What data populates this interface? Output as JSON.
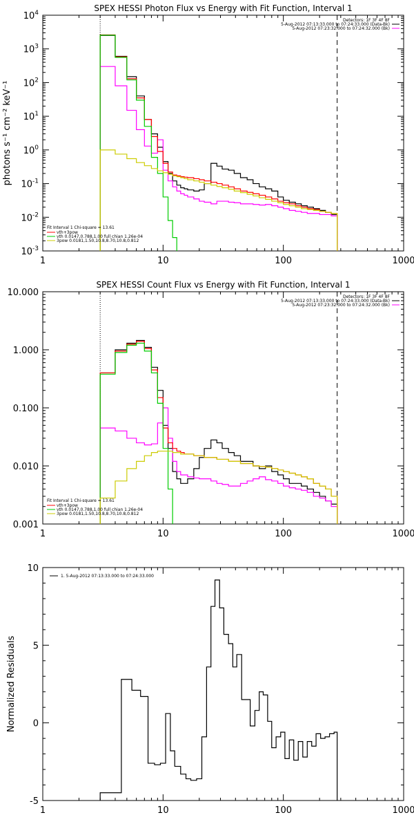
{
  "chart_data": [
    {
      "type": "line",
      "title": "SPEX HESSI Photon Flux vs Energy with Fit Function, Interval 1",
      "ylabel": "photons s⁻¹ cm⁻² keV⁻¹",
      "xlabel": "",
      "xscale": "log",
      "yscale": "log",
      "xlim": [
        1,
        1000
      ],
      "ylim": [
        0.001,
        10000
      ],
      "x_ticks": [
        1,
        10,
        100,
        1000
      ],
      "x_tick_labels": [
        "1",
        "10",
        "100",
        "1000"
      ],
      "y_ticks": [
        0.001,
        0.01,
        0.1,
        1,
        10,
        100,
        1000,
        10000
      ],
      "y_tick_labels": [
        {
          "base": "10",
          "exp": "-3"
        },
        {
          "base": "10",
          "exp": "-2"
        },
        {
          "base": "10",
          "exp": "-1"
        },
        {
          "base": "10",
          "exp": "0"
        },
        {
          "base": "10",
          "exp": "1"
        },
        {
          "base": "10",
          "exp": "2"
        },
        {
          "base": "10",
          "exp": "3"
        },
        {
          "base": "10",
          "exp": "4"
        }
      ],
      "vlines": [
        {
          "x": 3,
          "style": "dotted",
          "color": "#000000"
        },
        {
          "x": 280,
          "style": "dashed",
          "color": "#000000"
        }
      ],
      "header_lines": [
        "Detectors: 1F 3F 4F 8F",
        "5-Aug-2012 07:13:33.000 to 07:24:33.000 (Data-Bk)",
        "5-Aug-2012 07:23:32.000 to 07:24:32.000 (Bk)"
      ],
      "legend": {
        "position": "bottom-left",
        "header": "Fit Interval 1    Chi-square = 13.61",
        "entries": [
          {
            "label": "vth+3pow",
            "color": "#ff0000"
          },
          {
            "label": "vth 0.0147,0.788,1.00  full chian 1.26e-04",
            "color": "#00cc00"
          },
          {
            "label": "3pow 0.0181,1.50,10.8,8.70,10.8,0.812",
            "color": "#cccc00"
          }
        ]
      },
      "series": [
        {
          "name": "Data-Bk",
          "color": "#000000",
          "style": "step",
          "x": [
            3,
            4,
            5,
            6,
            7,
            8,
            9,
            10,
            11,
            12,
            13,
            14,
            15,
            16,
            18,
            20,
            22,
            25,
            28,
            31,
            35,
            39,
            44,
            50,
            56,
            63,
            71,
            80,
            90,
            100,
            112,
            126,
            141,
            158,
            178,
            200,
            224,
            250,
            280
          ],
          "y": [
            2500,
            600,
            150,
            40,
            8,
            3,
            1.2,
            0.45,
            0.2,
            0.12,
            0.09,
            0.075,
            0.07,
            0.065,
            0.06,
            0.065,
            0.1,
            0.4,
            0.33,
            0.27,
            0.25,
            0.2,
            0.15,
            0.13,
            0.1,
            0.08,
            0.07,
            0.06,
            0.04,
            0.032,
            0.028,
            0.025,
            0.022,
            0.02,
            0.018,
            0.016,
            0.014,
            0.012,
            0.012
          ]
        },
        {
          "name": "Bk",
          "color": "#ff00ff",
          "style": "step",
          "x": [
            3,
            4,
            5,
            6,
            7,
            8,
            9,
            10,
            11,
            12,
            13,
            14,
            15,
            16,
            18,
            20,
            22,
            25,
            28,
            31,
            35,
            39,
            44,
            50,
            56,
            63,
            71,
            80,
            90,
            100,
            112,
            126,
            141,
            158,
            178,
            200,
            224,
            250,
            280
          ],
          "y": [
            300,
            80,
            15,
            4,
            1.3,
            0.8,
            2.0,
            0.25,
            0.12,
            0.08,
            0.06,
            0.05,
            0.045,
            0.04,
            0.035,
            0.03,
            0.028,
            0.025,
            0.03,
            0.03,
            0.028,
            0.027,
            0.025,
            0.025,
            0.024,
            0.023,
            0.024,
            0.022,
            0.02,
            0.018,
            0.016,
            0.015,
            0.014,
            0.013,
            0.013,
            0.012,
            0.012,
            0.011,
            0.009
          ]
        },
        {
          "name": "vth+3pow",
          "color": "#ff0000",
          "style": "step",
          "x": [
            3,
            4,
            5,
            6,
            7,
            8,
            9,
            10,
            11,
            12,
            13,
            14,
            15,
            16,
            18,
            20,
            22,
            25,
            28,
            31,
            35,
            39,
            44,
            50,
            56,
            63,
            71,
            80,
            90,
            100,
            112,
            126,
            141,
            158,
            178,
            200,
            224,
            250,
            280
          ],
          "y": [
            2600,
            580,
            130,
            35,
            8,
            2.5,
            0.9,
            0.4,
            0.22,
            0.18,
            0.17,
            0.16,
            0.155,
            0.15,
            0.14,
            0.13,
            0.12,
            0.11,
            0.1,
            0.09,
            0.08,
            0.07,
            0.06,
            0.055,
            0.05,
            0.045,
            0.04,
            0.035,
            0.03,
            0.027,
            0.025,
            0.022,
            0.02,
            0.018,
            0.017,
            0.015,
            0.014,
            0.013,
            0.012
          ]
        },
        {
          "name": "vth",
          "color": "#00cc00",
          "style": "step",
          "x": [
            3,
            4,
            5,
            6,
            7,
            8,
            9,
            10,
            11,
            12,
            13
          ],
          "y": [
            2550,
            560,
            120,
            30,
            5,
            0.6,
            0.2,
            0.04,
            0.008,
            0.0025,
            0.001
          ]
        },
        {
          "name": "3pow",
          "color": "#cccc00",
          "style": "step",
          "x": [
            3,
            4,
            5,
            6,
            7,
            8,
            9,
            10,
            11,
            12,
            13,
            14,
            15,
            16,
            18,
            20,
            22,
            25,
            28,
            31,
            35,
            39,
            44,
            50,
            56,
            63,
            71,
            80,
            90,
            100,
            112,
            126,
            141,
            158,
            178,
            200,
            224,
            250,
            280
          ],
          "y": [
            1.0,
            0.75,
            0.55,
            0.42,
            0.34,
            0.28,
            0.24,
            0.21,
            0.19,
            0.17,
            0.16,
            0.15,
            0.14,
            0.13,
            0.12,
            0.11,
            0.1,
            0.09,
            0.082,
            0.075,
            0.068,
            0.06,
            0.054,
            0.048,
            0.043,
            0.038,
            0.034,
            0.03,
            0.027,
            0.024,
            0.022,
            0.02,
            0.018,
            0.017,
            0.016,
            0.015,
            0.014,
            0.013,
            0.012
          ]
        }
      ]
    },
    {
      "type": "line",
      "title": "SPEX HESSI Count Flux vs Energy with Fit Function, Interval 1",
      "xlabel": "",
      "ylabel": "",
      "xscale": "log",
      "yscale": "log",
      "xlim": [
        1,
        1000
      ],
      "ylim": [
        0.001,
        10
      ],
      "x_ticks": [
        1,
        10,
        100,
        1000
      ],
      "x_tick_labels": [
        "1",
        "10",
        "100",
        "1000"
      ],
      "y_ticks": [
        0.001,
        0.01,
        0.1,
        1,
        10
      ],
      "y_tick_labels": [
        "0.001",
        "0.010",
        "0.100",
        "1.000",
        "10.000"
      ],
      "vlines": [
        {
          "x": 3,
          "style": "dotted",
          "color": "#000000"
        },
        {
          "x": 280,
          "style": "dashed",
          "color": "#000000"
        }
      ],
      "header_lines": [
        "Detectors: 1F 3F 4F 8F",
        "5-Aug-2012 07:13:33.000 to 07:24:33.000 (Data-Bk)",
        "5-Aug-2012 07:23:32.000 to 07:24:32.000 (Bk)"
      ],
      "legend": {
        "position": "bottom-left",
        "header": "Fit Interval 1    Chi-square = 13.61",
        "entries": [
          {
            "label": "vth+3pow",
            "color": "#ff0000"
          },
          {
            "label": "vth 0.0147,0.788,1.00  full chian 1.26e-04",
            "color": "#00cc00"
          },
          {
            "label": "3pow 0.0181,1.50,10.8,8.70,10.8,0.812",
            "color": "#cccc00"
          }
        ]
      },
      "series": [
        {
          "name": "Data-Bk",
          "color": "#000000",
          "style": "step",
          "x": [
            3,
            4,
            5,
            6,
            7,
            8,
            9,
            10,
            11,
            12,
            13,
            14,
            15,
            16,
            18,
            20,
            22,
            25,
            28,
            31,
            35,
            39,
            44,
            50,
            56,
            63,
            71,
            80,
            90,
            100,
            112,
            126,
            141,
            158,
            178,
            200,
            224,
            250,
            280
          ],
          "y": [
            0.4,
            1.0,
            1.3,
            1.45,
            1.1,
            0.5,
            0.2,
            0.05,
            0.02,
            0.008,
            0.006,
            0.005,
            0.005,
            0.006,
            0.009,
            0.014,
            0.02,
            0.028,
            0.025,
            0.02,
            0.017,
            0.015,
            0.012,
            0.012,
            0.01,
            0.009,
            0.01,
            0.008,
            0.007,
            0.006,
            0.005,
            0.005,
            0.0045,
            0.004,
            0.0035,
            0.003,
            0.0025,
            0.0022,
            0.0018
          ]
        },
        {
          "name": "Bk",
          "color": "#ff00ff",
          "style": "step",
          "x": [
            3,
            4,
            5,
            6,
            7,
            8,
            9,
            10,
            11,
            12,
            13,
            14,
            15,
            16,
            18,
            20,
            22,
            25,
            28,
            31,
            35,
            39,
            44,
            50,
            56,
            63,
            71,
            80,
            90,
            100,
            112,
            126,
            141,
            158,
            178,
            200,
            224,
            250,
            280
          ],
          "y": [
            0.045,
            0.04,
            0.03,
            0.025,
            0.023,
            0.024,
            0.055,
            0.1,
            0.03,
            0.012,
            0.008,
            0.007,
            0.007,
            0.0065,
            0.0062,
            0.006,
            0.006,
            0.0055,
            0.005,
            0.0048,
            0.0045,
            0.0045,
            0.005,
            0.0055,
            0.006,
            0.0065,
            0.0058,
            0.0055,
            0.005,
            0.0045,
            0.0042,
            0.004,
            0.0038,
            0.0035,
            0.003,
            0.0028,
            0.0025,
            0.002,
            0.0015
          ]
        },
        {
          "name": "vth+3pow",
          "color": "#ff0000",
          "style": "step",
          "x": [
            3,
            4,
            5,
            6,
            7,
            8,
            9,
            10,
            11,
            12,
            13,
            14,
            15,
            16,
            18,
            20,
            22,
            25,
            28,
            31,
            35,
            39,
            44,
            50,
            56,
            63,
            71,
            80,
            90,
            100,
            112,
            126,
            141,
            158,
            178,
            200,
            224,
            250,
            280
          ],
          "y": [
            0.4,
            0.95,
            1.25,
            1.4,
            1.05,
            0.45,
            0.15,
            0.045,
            0.025,
            0.02,
            0.018,
            0.017,
            0.016,
            0.016,
            0.015,
            0.015,
            0.014,
            0.014,
            0.013,
            0.013,
            0.012,
            0.012,
            0.011,
            0.011,
            0.01,
            0.0098,
            0.0095,
            0.009,
            0.0085,
            0.008,
            0.0075,
            0.007,
            0.0065,
            0.006,
            0.005,
            0.0045,
            0.004,
            0.003,
            0.002
          ]
        },
        {
          "name": "vth",
          "color": "#00cc00",
          "style": "step",
          "x": [
            3,
            4,
            5,
            6,
            7,
            8,
            9,
            10,
            11,
            12
          ],
          "y": [
            0.38,
            0.9,
            1.2,
            1.3,
            0.95,
            0.4,
            0.12,
            0.02,
            0.004,
            0.001
          ]
        },
        {
          "name": "3pow",
          "color": "#cccc00",
          "style": "step",
          "x": [
            3,
            4,
            5,
            6,
            7,
            8,
            9,
            10,
            11,
            12,
            13,
            14,
            15,
            16,
            18,
            20,
            22,
            25,
            28,
            31,
            35,
            39,
            44,
            50,
            56,
            63,
            71,
            80,
            90,
            100,
            112,
            126,
            141,
            158,
            178,
            200,
            224,
            250,
            280
          ],
          "y": [
            0.0028,
            0.0055,
            0.009,
            0.012,
            0.015,
            0.017,
            0.018,
            0.018,
            0.018,
            0.017,
            0.017,
            0.016,
            0.016,
            0.016,
            0.015,
            0.015,
            0.014,
            0.014,
            0.013,
            0.013,
            0.012,
            0.012,
            0.011,
            0.011,
            0.01,
            0.0098,
            0.0095,
            0.009,
            0.0085,
            0.008,
            0.0075,
            0.007,
            0.0065,
            0.006,
            0.005,
            0.0045,
            0.004,
            0.003,
            0.002
          ]
        }
      ]
    },
    {
      "type": "line",
      "title": "",
      "xlabel": "",
      "ylabel": "Normalized Residuals",
      "xscale": "log",
      "yscale": "linear",
      "xlim": [
        1,
        1000
      ],
      "ylim": [
        -5,
        10
      ],
      "x_ticks": [
        1,
        10,
        100,
        1000
      ],
      "x_tick_labels": [
        "1",
        "10",
        "100",
        "1000"
      ],
      "y_ticks": [
        -5,
        0,
        5,
        10
      ],
      "y_tick_labels": [
        "-5",
        "0",
        "5",
        "10"
      ],
      "legend": {
        "position": "top-left",
        "entries": [
          {
            "label": "1.  5-Aug-2012 07:13:33.000 to 07:24:33.000",
            "color": "#000000"
          }
        ]
      },
      "series": [
        {
          "name": "1.  5-Aug-2012 07:13:33.000 to 07:24:33.000",
          "color": "#000000",
          "style": "step",
          "x": [
            3,
            4.5,
            5.5,
            6.5,
            7.5,
            8.5,
            9.5,
            10.5,
            11.5,
            12.5,
            14,
            15.5,
            17,
            19,
            21,
            23,
            25,
            27,
            29.5,
            32,
            35,
            38,
            41,
            45,
            49,
            53,
            58,
            63,
            68,
            74,
            80,
            87,
            95,
            103,
            112,
            122,
            133,
            145,
            158,
            172,
            187,
            204,
            222,
            242,
            264,
            280
          ],
          "y": [
            -4.5,
            2.8,
            2.1,
            1.7,
            -2.6,
            -2.7,
            -2.6,
            0.6,
            -1.8,
            -2.8,
            -3.3,
            -3.6,
            -3.7,
            -3.6,
            -0.9,
            3.6,
            7.5,
            9.2,
            7.4,
            5.7,
            5.1,
            3.6,
            4.4,
            1.5,
            1.5,
            -0.2,
            0.8,
            2.0,
            1.8,
            0.1,
            -1.6,
            -0.9,
            -0.6,
            -2.3,
            -1.1,
            -2.4,
            -1.2,
            -2.2,
            -1.2,
            -1.5,
            -0.7,
            -1.0,
            -0.9,
            -0.7,
            -0.6,
            -5.0
          ]
        }
      ]
    }
  ]
}
